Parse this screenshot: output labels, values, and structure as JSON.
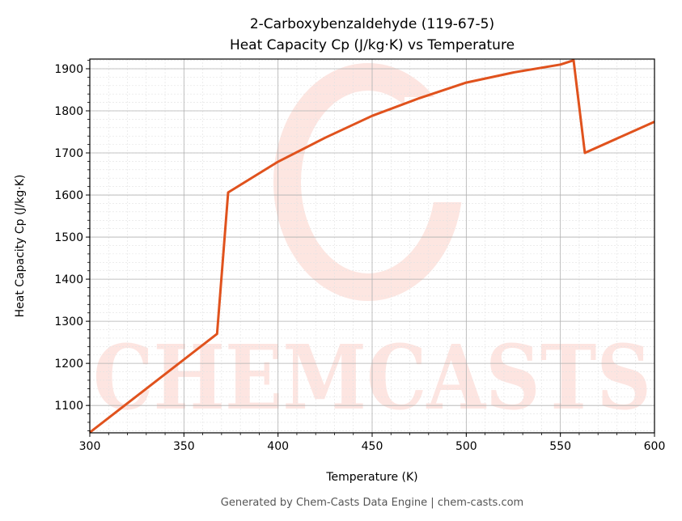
{
  "chart_data": {
    "type": "line",
    "title_line1": "2-Carboxybenzaldehyde (119-67-5)",
    "title_line2": "Heat Capacity Cp (J/kg·K) vs Temperature",
    "xlabel": "Temperature (K)",
    "ylabel": "Heat Capacity Cp (J/kg·K)",
    "xlim": [
      300,
      600
    ],
    "ylim": [
      1035,
      1923
    ],
    "xticks": [
      300,
      350,
      400,
      450,
      500,
      550,
      600
    ],
    "yticks": [
      1100,
      1200,
      1300,
      1400,
      1500,
      1600,
      1700,
      1800,
      1900
    ],
    "grid": true,
    "series": [
      {
        "name": "Cp",
        "color": "#e0521d",
        "x": [
          300,
          367.6,
          373.5,
          400,
          425,
          450,
          475,
          500,
          525,
          550,
          557,
          563,
          600
        ],
        "y": [
          1036,
          1270,
          1606,
          1679,
          1736,
          1788,
          1830,
          1867,
          1891,
          1910,
          1920,
          1700,
          1774
        ]
      }
    ],
    "watermark": "CHEMCASTS",
    "footer": "Generated by Chem-Casts Data Engine | chem-casts.com"
  }
}
